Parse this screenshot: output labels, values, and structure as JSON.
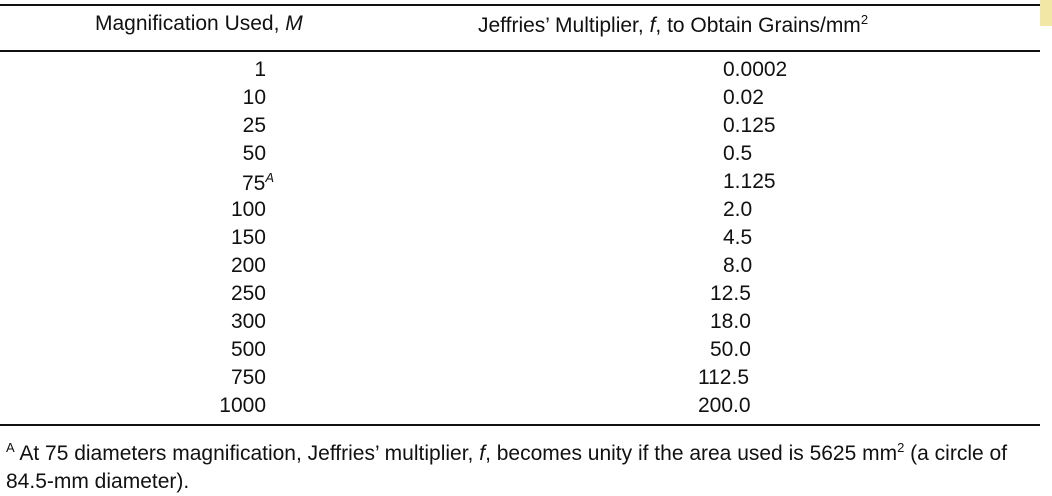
{
  "table": {
    "header": {
      "col1_text": "Magnification Used, ",
      "col1_var": "M",
      "col2_pre": "Jeffries’ Multiplier, ",
      "col2_var": "f",
      "col2_post": ", to Obtain Grains/mm",
      "col2_sup": "2"
    },
    "rows": [
      {
        "m": "1",
        "m_sup": "",
        "f": "0.0002"
      },
      {
        "m": "10",
        "m_sup": "",
        "f": "0.02"
      },
      {
        "m": "25",
        "m_sup": "",
        "f": "0.125"
      },
      {
        "m": "50",
        "m_sup": "",
        "f": "0.5"
      },
      {
        "m": "75",
        "m_sup": "A",
        "f": "1.125"
      },
      {
        "m": "100",
        "m_sup": "",
        "f": "2.0"
      },
      {
        "m": "150",
        "m_sup": "",
        "f": "4.5"
      },
      {
        "m": "200",
        "m_sup": "",
        "f": "8.0"
      },
      {
        "m": "250",
        "m_sup": "",
        "f": "12.5"
      },
      {
        "m": "300",
        "m_sup": "",
        "f": "18.0"
      },
      {
        "m": "500",
        "m_sup": "",
        "f": "50.0"
      },
      {
        "m": "750",
        "m_sup": "",
        "f": "112.5"
      },
      {
        "m": "1000",
        "m_sup": "",
        "f": "200.0"
      }
    ],
    "footnote": {
      "marker": "A",
      "text1": " At 75 diameters magnification, Jeffries’ multiplier, ",
      "var": "f",
      "text2": ", becomes unity if the area used is 5625 mm",
      "sup": "2",
      "text3": " (a circle of 84.5-mm diameter)."
    }
  }
}
